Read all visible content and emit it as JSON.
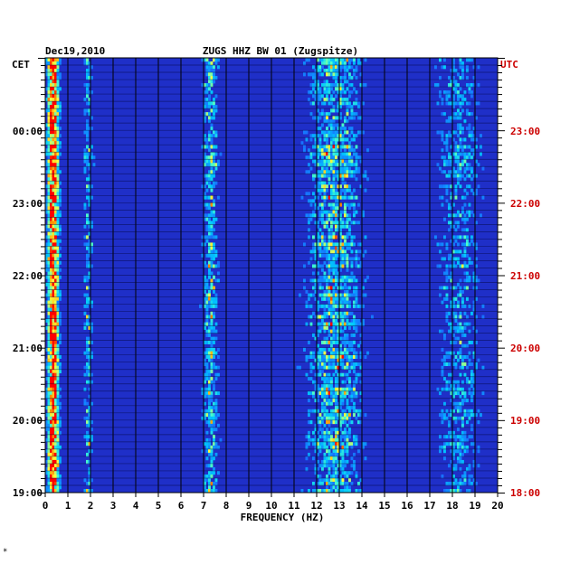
{
  "chart_data": {
    "type": "heatmap",
    "date": "Dec19,2010",
    "title": "ZUGS HHZ BW 01 (Zugspitze)",
    "xlabel": "FREQUENCY (HZ)",
    "left_zone": "CET",
    "right_zone": "UTC",
    "xlim": [
      0,
      20
    ],
    "x_ticks": [
      0,
      1,
      2,
      3,
      4,
      5,
      6,
      7,
      8,
      9,
      10,
      11,
      12,
      13,
      14,
      15,
      16,
      17,
      18,
      19,
      20
    ],
    "left_time_labels": [
      "00:00",
      "23:00",
      "22:00",
      "21:00",
      "20:00",
      "19:00"
    ],
    "right_time_labels": [
      "23:00",
      "22:00",
      "21:00",
      "20:00",
      "19:00",
      "18:00"
    ],
    "time_range_utc": [
      "18:00",
      "23:50"
    ],
    "grid": true,
    "bands": [
      {
        "freq": 0.35,
        "width": 0.25,
        "strength": 1.0
      },
      {
        "freq": 1.9,
        "width": 0.2,
        "strength": 0.45
      },
      {
        "freq": 7.3,
        "width": 0.35,
        "strength": 0.5
      },
      {
        "freq": 12.8,
        "width": 1.2,
        "strength": 0.55
      },
      {
        "freq": 18.3,
        "width": 1.0,
        "strength": 0.35
      }
    ],
    "colors": {
      "background": "#1f2fc8",
      "low": "#0000a0",
      "high": "#ff0000",
      "text_right": "#cc0000"
    }
  },
  "footer_mark": "*"
}
